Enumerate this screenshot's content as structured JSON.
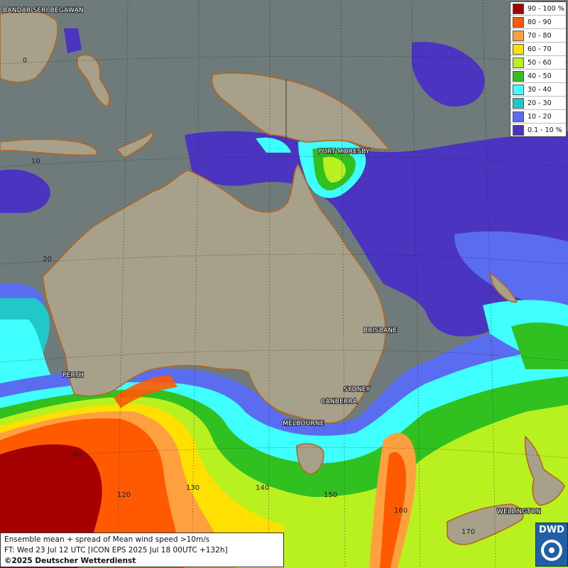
{
  "legend": [
    {
      "label": "90 - 100 %",
      "color": "#a50000"
    },
    {
      "label": "80 - 90",
      "color": "#ff5a00"
    },
    {
      "label": "70 - 80",
      "color": "#ffa040"
    },
    {
      "label": "60 - 70",
      "color": "#ffe000"
    },
    {
      "label": "50 - 60",
      "color": "#b8f020"
    },
    {
      "label": "40 - 50",
      "color": "#30c020"
    },
    {
      "label": "30 - 40",
      "color": "#40ffff"
    },
    {
      "label": "20 - 30",
      "color": "#20c8c8"
    },
    {
      "label": "10 - 20",
      "color": "#5a6cf0"
    },
    {
      "label": "0.1 - 10 %",
      "color": "#4a34c0"
    }
  ],
  "cities": {
    "bandar_seri_begawan": "BANDAR SERI BEGAWAN",
    "port_moresby": "PORT MORESBY",
    "brisbane": "BRISBANE",
    "sydney": "SYDNEY",
    "canberra": "CANBERRA",
    "melbourne": "MELBOURNE",
    "perth": "PERTH",
    "wellington": "WELLINGTON"
  },
  "grid_labels": {
    "lat_0": "0",
    "lat_10": "10",
    "lat_20": "20",
    "lat_40": "40",
    "lon_120": "120",
    "lon_130": "130",
    "lon_140": "140",
    "lon_150": "150",
    "lon_160": "160",
    "lon_170": "170"
  },
  "info": {
    "line1": "Ensemble mean + spread of Mean wind speed >10m/s",
    "line2": "FT: Wed 23 Jul 12 UTC [ICON EPS 2025 Jul 18 00UTC +132h]",
    "line3": "©2025 Deutscher Wetterdienst"
  },
  "logo": {
    "text": "DWD"
  }
}
